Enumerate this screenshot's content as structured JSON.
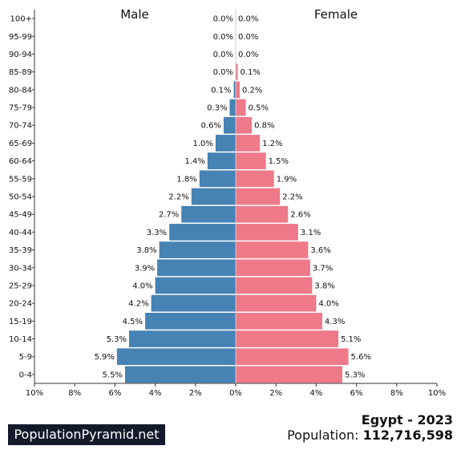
{
  "chart_data": {
    "type": "bar",
    "orientation": "horizontal",
    "layout": "population-pyramid",
    "categories": [
      "100+",
      "95-99",
      "90-94",
      "85-89",
      "80-84",
      "75-79",
      "70-74",
      "65-69",
      "60-64",
      "55-59",
      "50-54",
      "45-49",
      "40-44",
      "35-39",
      "30-34",
      "25-29",
      "20-24",
      "15-19",
      "10-14",
      "5-9",
      "0-4"
    ],
    "series": [
      {
        "name": "Male",
        "color": "#4682b4",
        "values": [
          0.0,
          0.0,
          0.0,
          0.0,
          0.1,
          0.3,
          0.6,
          1.0,
          1.4,
          1.8,
          2.2,
          2.7,
          3.3,
          3.8,
          3.9,
          4.0,
          4.2,
          4.5,
          5.3,
          5.9,
          5.5
        ],
        "labels": [
          "0.0%",
          "0.0%",
          "0.0%",
          "0.0%",
          "0.1%",
          "0.3%",
          "0.6%",
          "1.0%",
          "1.4%",
          "1.8%",
          "2.2%",
          "2.7%",
          "3.3%",
          "3.8%",
          "3.9%",
          "4.0%",
          "4.2%",
          "4.5%",
          "5.3%",
          "5.9%",
          "5.5%"
        ]
      },
      {
        "name": "Female",
        "color": "#ee7989",
        "values": [
          0.0,
          0.0,
          0.0,
          0.1,
          0.2,
          0.5,
          0.8,
          1.2,
          1.5,
          1.9,
          2.2,
          2.6,
          3.1,
          3.6,
          3.7,
          3.8,
          4.0,
          4.3,
          5.1,
          5.6,
          5.3
        ],
        "labels": [
          "0.0%",
          "0.0%",
          "0.0%",
          "0.1%",
          "0.2%",
          "0.5%",
          "0.8%",
          "1.2%",
          "1.5%",
          "1.9%",
          "2.2%",
          "2.6%",
          "3.1%",
          "3.6%",
          "3.7%",
          "3.8%",
          "4.0%",
          "4.3%",
          "5.1%",
          "5.6%",
          "5.3%"
        ]
      }
    ],
    "xlim": [
      -10,
      10
    ],
    "x_ticks": [
      -10,
      -8,
      -6,
      -4,
      -2,
      0,
      2,
      4,
      6,
      8,
      10
    ],
    "x_tick_labels": [
      "10%",
      "8%",
      "6%",
      "4%",
      "2%",
      "0%",
      "2%",
      "4%",
      "6%",
      "8%",
      "10%"
    ],
    "xlabel": "",
    "ylabel": "",
    "grid": false,
    "legend": "none"
  },
  "footer": {
    "brand": "PopulationPyramid.net",
    "country_year": "Egypt - 2023",
    "population_label": "Population: ",
    "population_value": "112,716,598"
  }
}
